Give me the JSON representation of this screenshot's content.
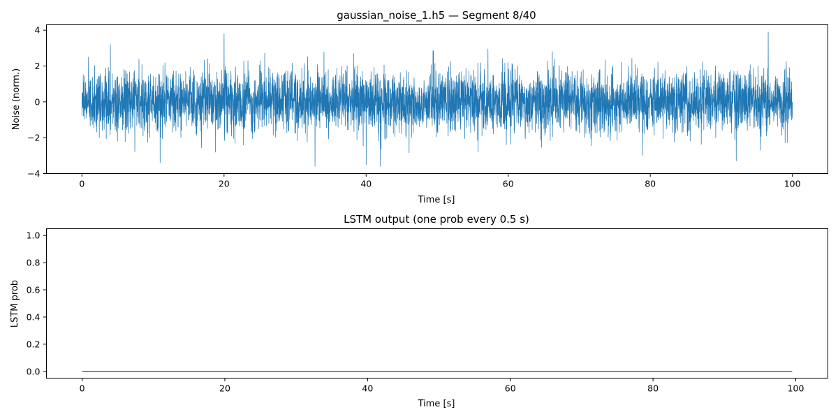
{
  "chart_data": [
    {
      "type": "line",
      "title": "gaussian_noise_1.h5 — Segment 8/40",
      "xlabel": "Time [s]",
      "ylabel": "Noise (norm.)",
      "xlim": [
        -5,
        105
      ],
      "ylim": [
        -4,
        4.3
      ],
      "xticks": [
        0,
        20,
        40,
        60,
        80,
        100
      ],
      "xtick_labels": [
        "0",
        "20",
        "40",
        "60",
        "80",
        "100"
      ],
      "yticks": [
        -4,
        -2,
        0,
        2,
        4
      ],
      "ytick_labels": [
        "−4",
        "−2",
        "0",
        "2",
        "4"
      ],
      "grid": false,
      "series": [
        {
          "name": "noise",
          "color": "#1f77b4",
          "kind": "gaussian-noise",
          "x_range": [
            0,
            100
          ],
          "mean": 0.0,
          "std": 0.85,
          "min": -3.6,
          "max": 3.9,
          "peaks": [
            {
              "x": 20.0,
              "y": 3.8
            },
            {
              "x": 96.6,
              "y": 3.9
            },
            {
              "x": 32.8,
              "y": -3.6
            },
            {
              "x": 40.0,
              "y": -3.5
            },
            {
              "x": 42.0,
              "y": -3.6
            },
            {
              "x": 92.1,
              "y": -3.3
            },
            {
              "x": 11.0,
              "y": -3.4
            },
            {
              "x": 4.0,
              "y": 3.2
            }
          ]
        }
      ]
    },
    {
      "type": "line",
      "title": "LSTM output (one prob every 0.5 s)",
      "xlabel": "Time [s]",
      "ylabel": "LSTM prob",
      "xlim": [
        -5,
        104.5
      ],
      "ylim": [
        -0.05,
        1.05
      ],
      "xticks": [
        0,
        20,
        40,
        60,
        80,
        100
      ],
      "xtick_labels": [
        "0",
        "20",
        "40",
        "60",
        "80",
        "100"
      ],
      "yticks": [
        0.0,
        0.2,
        0.4,
        0.6,
        0.8,
        1.0
      ],
      "ytick_labels": [
        "0.0",
        "0.2",
        "0.4",
        "0.6",
        "0.8",
        "1.0"
      ],
      "grid": false,
      "series": [
        {
          "name": "lstm_prob",
          "color": "#1f77b4",
          "x_start": 0,
          "x_step": 0.5,
          "x_end": 99.5,
          "constant_value": 0.0
        }
      ]
    }
  ]
}
